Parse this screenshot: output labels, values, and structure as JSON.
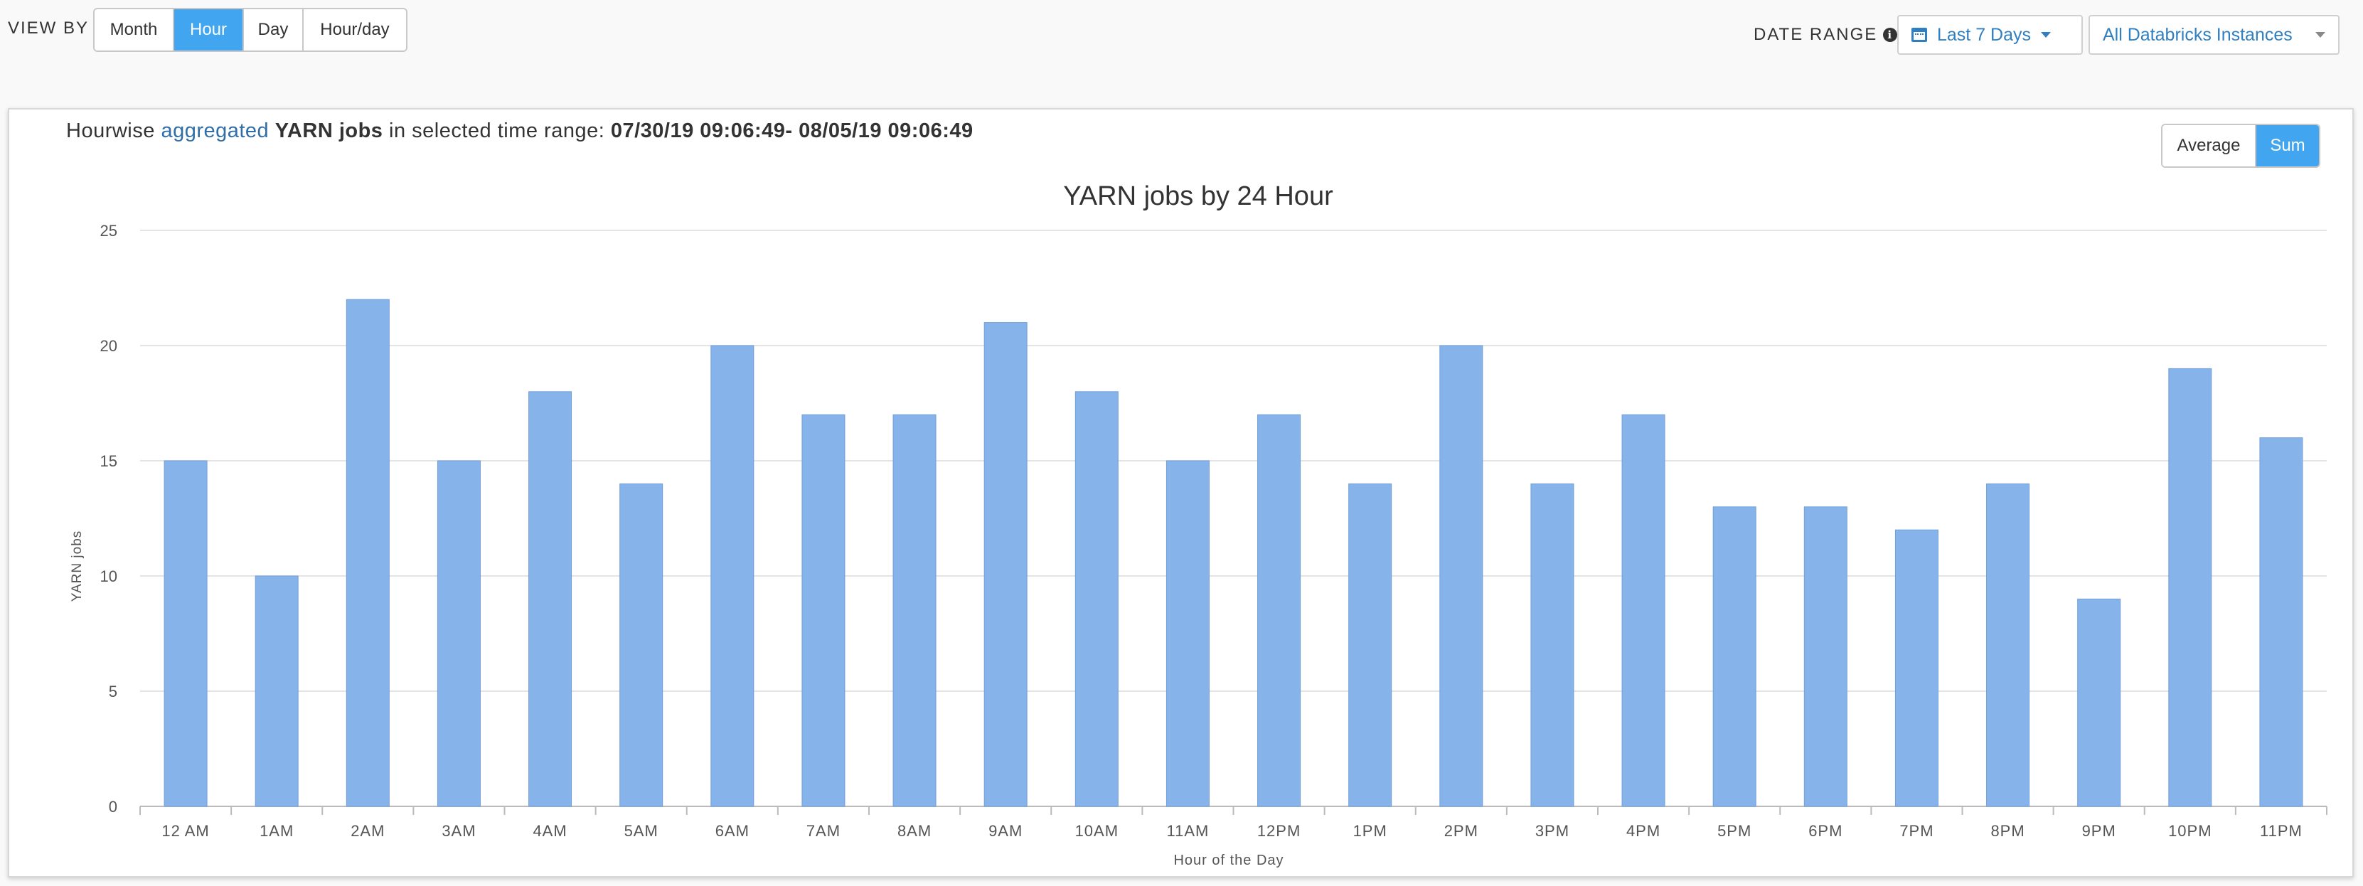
{
  "view_by": {
    "label": "VIEW BY",
    "options": [
      "Month",
      "Hour",
      "Day",
      "Hour/day"
    ],
    "selected": "Hour"
  },
  "date_range": {
    "label": "DATE RANGE",
    "selected": "Last 7 Days",
    "instances": "All Databricks Instances"
  },
  "panel": {
    "heading_prefix": "Hourwise",
    "heading_link": "aggregated",
    "heading_metric": "YARN jobs",
    "heading_mid": "in selected time range:",
    "heading_range": "07/30/19 09:06:49- 08/05/19 09:06:49",
    "aggregation": {
      "options": [
        "Average",
        "Sum"
      ],
      "selected": "Sum"
    }
  },
  "colors": {
    "accent": "#42a5f0",
    "bar": "#86b3ea",
    "link": "#2f6ea8"
  },
  "chart_data": {
    "type": "bar",
    "title": "YARN jobs by 24 Hour",
    "xlabel": "Hour of the Day",
    "ylabel": "YARN jobs",
    "categories": [
      "12 AM",
      "1AM",
      "2AM",
      "3AM",
      "4AM",
      "5AM",
      "6AM",
      "7AM",
      "8AM",
      "9AM",
      "10AM",
      "11AM",
      "12PM",
      "1PM",
      "2PM",
      "3PM",
      "4PM",
      "5PM",
      "6PM",
      "7PM",
      "8PM",
      "9PM",
      "10PM",
      "11PM"
    ],
    "values": [
      15,
      10,
      22,
      15,
      18,
      14,
      20,
      17,
      17,
      21,
      18,
      15,
      17,
      14,
      20,
      14,
      17,
      13,
      13,
      12,
      14,
      9,
      19,
      16
    ],
    "ylim": [
      0,
      25
    ],
    "yticks": [
      0,
      5,
      10,
      15,
      20,
      25
    ],
    "grid": true,
    "legend": "none"
  }
}
